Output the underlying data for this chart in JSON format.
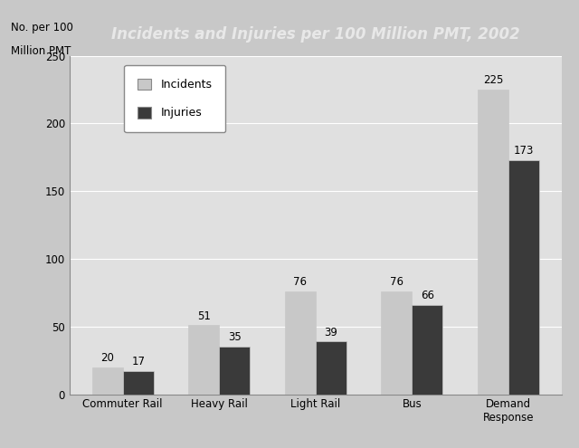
{
  "title": "Incidents and Injuries per 100 Million PMT, 2002",
  "ylabel_line1": "No. per 100",
  "ylabel_line2": "Million PMT",
  "categories": [
    "Commuter Rail",
    "Heavy Rail",
    "Light Rail",
    "Bus",
    "Demand\nResponse"
  ],
  "incidents": [
    20,
    51,
    76,
    76,
    225
  ],
  "injuries": [
    17,
    35,
    39,
    66,
    173
  ],
  "incidents_color": "#c8c8c8",
  "injuries_color": "#3a3a3a",
  "title_bg_color": "#1a1a1a",
  "title_text_color": "#e8e8e8",
  "fig_bg_color": "#c8c8c8",
  "plot_bg_color": "#e0e0e0",
  "ylim": [
    0,
    250
  ],
  "yticks": [
    0,
    50,
    100,
    150,
    200,
    250
  ],
  "bar_width": 0.32,
  "legend_labels": [
    "Incidents",
    "Injuries"
  ],
  "value_labels_incidents": [
    20,
    51,
    76,
    76,
    225
  ],
  "value_labels_injuries": [
    17,
    35,
    39,
    66,
    173
  ],
  "grid_color": "#ffffff",
  "spine_color": "#888888"
}
